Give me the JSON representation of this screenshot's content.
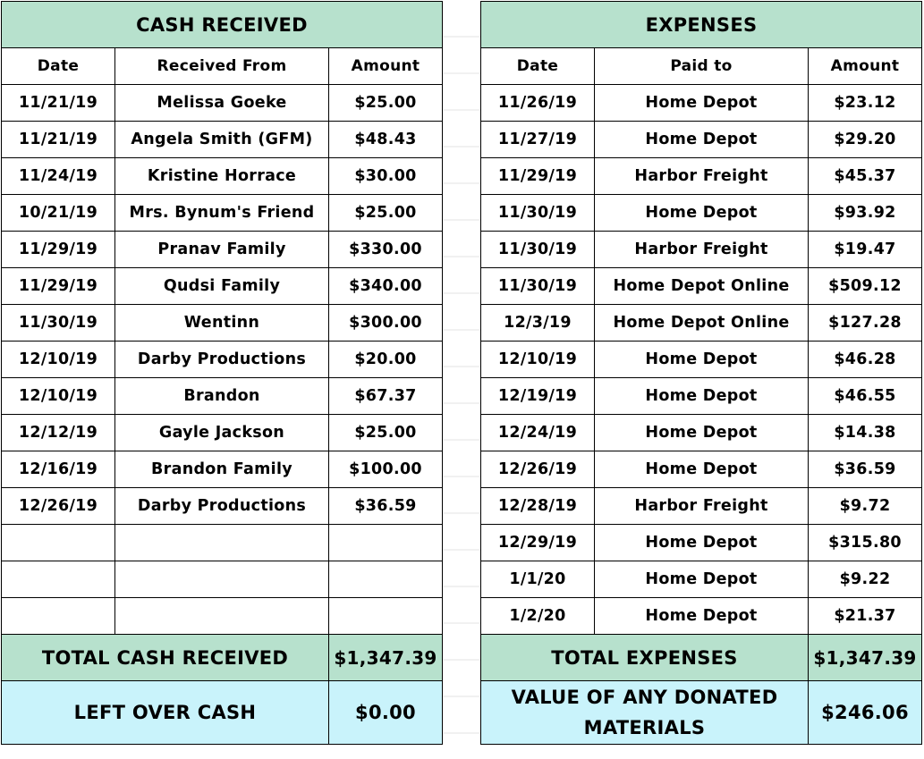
{
  "cash": {
    "title": "CASH RECEIVED",
    "headers": {
      "date": "Date",
      "from": "Received From",
      "amount": "Amount"
    },
    "rows": [
      {
        "date": "11/21/19",
        "from": "Melissa Goeke",
        "amount": "$25.00"
      },
      {
        "date": "11/21/19",
        "from": "Angela Smith (GFM)",
        "amount": "$48.43"
      },
      {
        "date": "11/24/19",
        "from": "Kristine Horrace",
        "amount": "$30.00"
      },
      {
        "date": "10/21/19",
        "from": "Mrs. Bynum's Friend",
        "amount": "$25.00"
      },
      {
        "date": "11/29/19",
        "from": "Pranav Family",
        "amount": "$330.00"
      },
      {
        "date": "11/29/19",
        "from": "Qudsi Family",
        "amount": "$340.00"
      },
      {
        "date": "11/30/19",
        "from": "Wentinn",
        "amount": "$300.00"
      },
      {
        "date": "12/10/19",
        "from": "Darby Productions",
        "amount": "$20.00"
      },
      {
        "date": "12/10/19",
        "from": "Brandon",
        "amount": "$67.37"
      },
      {
        "date": "12/12/19",
        "from": "Gayle Jackson",
        "amount": "$25.00"
      },
      {
        "date": "12/16/19",
        "from": "Brandon Family",
        "amount": "$100.00"
      },
      {
        "date": "12/26/19",
        "from": "Darby Productions",
        "amount": "$36.59"
      },
      {
        "date": "",
        "from": "",
        "amount": ""
      },
      {
        "date": "",
        "from": "",
        "amount": ""
      },
      {
        "date": "",
        "from": "",
        "amount": ""
      }
    ],
    "total_label": "TOTAL CASH RECEIVED",
    "total_value": "$1,347.39",
    "left_label": "LEFT OVER CASH",
    "left_value": "$0.00"
  },
  "expenses": {
    "title": "EXPENSES",
    "headers": {
      "date": "Date",
      "paid_to": "Paid to",
      "amount": "Amount"
    },
    "rows": [
      {
        "date": "11/26/19",
        "paid_to": "Home Depot",
        "amount": "$23.12"
      },
      {
        "date": "11/27/19",
        "paid_to": "Home Depot",
        "amount": "$29.20"
      },
      {
        "date": "11/29/19",
        "paid_to": "Harbor Freight",
        "amount": "$45.37"
      },
      {
        "date": "11/30/19",
        "paid_to": "Home Depot",
        "amount": "$93.92"
      },
      {
        "date": "11/30/19",
        "paid_to": "Harbor Freight",
        "amount": "$19.47"
      },
      {
        "date": "11/30/19",
        "paid_to": "Home Depot Online",
        "amount": "$509.12"
      },
      {
        "date": "12/3/19",
        "paid_to": "Home Depot Online",
        "amount": "$127.28"
      },
      {
        "date": "12/10/19",
        "paid_to": "Home Depot",
        "amount": "$46.28"
      },
      {
        "date": "12/19/19",
        "paid_to": "Home Depot",
        "amount": "$46.55"
      },
      {
        "date": "12/24/19",
        "paid_to": "Home Depot",
        "amount": "$14.38"
      },
      {
        "date": "12/26/19",
        "paid_to": "Home Depot",
        "amount": "$36.59"
      },
      {
        "date": "12/28/19",
        "paid_to": "Harbor Freight",
        "amount": "$9.72"
      },
      {
        "date": "12/29/19",
        "paid_to": "Home Depot",
        "amount": "$315.80"
      },
      {
        "date": "1/1/20",
        "paid_to": "Home Depot",
        "amount": "$9.22"
      },
      {
        "date": "1/2/20",
        "paid_to": "Home Depot",
        "amount": "$21.37"
      }
    ],
    "total_label": "TOTAL EXPENSES",
    "total_value": "$1,347.39",
    "donated_label": "VALUE OF ANY DONATED MATERIALS",
    "donated_value": "$246.06"
  },
  "colors": {
    "header_green": "#b7e1cd",
    "summary_cyan": "#c9f3fb"
  }
}
